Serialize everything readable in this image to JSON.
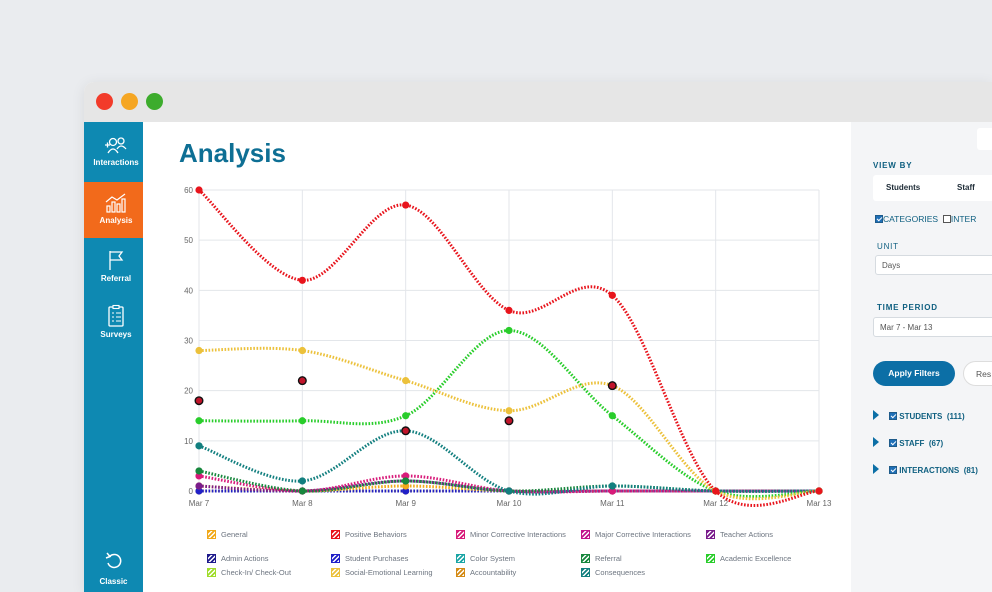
{
  "window": {
    "dots": [
      {
        "name": "close-dot",
        "color": "#f23b2a"
      },
      {
        "name": "minimize-dot",
        "color": "#f5a623"
      },
      {
        "name": "zoom-dot",
        "color": "#3dac2d"
      }
    ]
  },
  "sidebar": {
    "items": [
      {
        "label": "Interactions",
        "icon": "interactions-icon"
      },
      {
        "label": "Analysis",
        "icon": "analysis-chart-icon",
        "active": true
      },
      {
        "label": "Referral",
        "icon": "flag-icon"
      },
      {
        "label": "Surveys",
        "icon": "clipboard-icon"
      }
    ],
    "bottom": {
      "label": "Classic",
      "icon": "undo-icon"
    }
  },
  "main": {
    "title": "Analysis"
  },
  "chart_data": {
    "type": "line",
    "x": [
      "Mar 7",
      "Mar 8",
      "Mar 9",
      "Mar 10",
      "Mar 11",
      "Mar 12",
      "Mar 13"
    ],
    "y_ticks": [
      0,
      10,
      20,
      30,
      40,
      50,
      60
    ],
    "ylim": [
      0,
      60
    ],
    "grid": true,
    "series": [
      {
        "name": "Positive Behaviors",
        "color": "#e8141c",
        "values": [
          60,
          42,
          57,
          36,
          39,
          0,
          0
        ]
      },
      {
        "name": "Social-Emotional Learning",
        "color": "#ecc13b",
        "values": [
          28,
          28,
          22,
          16,
          21,
          0,
          0
        ]
      },
      {
        "name": "Academic Excellence",
        "color": "#29cd2b",
        "values": [
          14,
          14,
          15,
          32,
          15,
          0,
          0
        ]
      },
      {
        "name": "Consequences",
        "color": "#127f7f",
        "values": [
          9,
          2,
          12,
          0,
          1,
          0,
          0
        ]
      },
      {
        "name": "Referral",
        "color": "#17873d",
        "values": [
          4,
          0,
          2,
          0,
          1,
          0,
          0
        ]
      },
      {
        "name": "Minor Corrective Interactions",
        "color": "#d81b7a",
        "values": [
          3,
          0,
          3,
          0,
          0,
          0,
          0
        ]
      },
      {
        "name": "Teacher Actions",
        "color": "#7a1c8c",
        "values": [
          1,
          0,
          2,
          0,
          0,
          0,
          0
        ]
      },
      {
        "name": "General",
        "color": "#f1a91a",
        "values": [
          1,
          0,
          1,
          0,
          0,
          0,
          0
        ]
      },
      {
        "name": "Student Purchases",
        "color": "#2020c8",
        "values": [
          0,
          0,
          0,
          0,
          0,
          0,
          0
        ]
      },
      {
        "name": "Accountability",
        "color": "#d48a14",
        "values": [
          0,
          0,
          0,
          0,
          0,
          0,
          0
        ]
      }
    ],
    "markers": [
      {
        "x": "Mar 7",
        "y": 18
      },
      {
        "x": "Mar 8",
        "y": 22
      },
      {
        "x": "Mar 9",
        "y": 12
      },
      {
        "x": "Mar 10",
        "y": 14
      },
      {
        "x": "Mar 11",
        "y": 21
      }
    ],
    "legend": [
      {
        "label": "General",
        "color": "#f1a91a"
      },
      {
        "label": "Positive Behaviors",
        "color": "#e8141c"
      },
      {
        "label": "Minor Corrective Interactions",
        "color": "#d81b7a"
      },
      {
        "label": "Major Corrective Interactions",
        "color": "#c2148c"
      },
      {
        "label": "Teacher Actions",
        "color": "#7a1c8c"
      },
      {
        "label": "Admin Actions",
        "color": "#1e1a8c"
      },
      {
        "label": "Student Purchases",
        "color": "#2020c8"
      },
      {
        "label": "Color System",
        "color": "#1aa5a5"
      },
      {
        "label": "Referral",
        "color": "#17873d"
      },
      {
        "label": "Academic Excellence",
        "color": "#29cd2b"
      },
      {
        "label": "Check-In/ Check-Out",
        "color": "#9fdc2a"
      },
      {
        "label": "Social-Emotional Learning",
        "color": "#ecc13b"
      },
      {
        "label": "Accountability",
        "color": "#d48a14"
      },
      {
        "label": "Consequences",
        "color": "#127f7f"
      }
    ]
  },
  "panel": {
    "view_by": "VIEW BY",
    "tabs": [
      "Students",
      "Staff"
    ],
    "categories_label": "CATEGORIES",
    "inter_label": "INTER",
    "unit_label": "UNIT",
    "unit_value": "Days",
    "time_period_label": "TIME PERIOD",
    "time_period_value": "Mar 7 - Mar 13",
    "apply_label": "Apply Filters",
    "reset_label": "Res",
    "tree": [
      {
        "label": "STUDENTS",
        "count": "(111)"
      },
      {
        "label": "STAFF",
        "count": "(67)"
      },
      {
        "label": "INTERACTIONS",
        "count": "(81)"
      }
    ]
  }
}
